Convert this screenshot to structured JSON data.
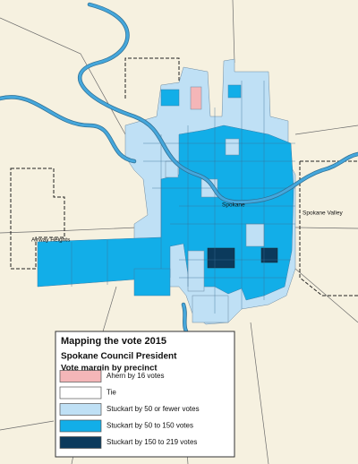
{
  "legend": {
    "title": "Mapping the vote 2015",
    "subtitle": "Spokane Council President",
    "caption": "Vote margin by precinct",
    "items": [
      {
        "label": "Ahern by 16 votes",
        "color": "#f4b6b8"
      },
      {
        "label": "Tie",
        "color": "#ffffff"
      },
      {
        "label": "Stuckart by 50 or fewer votes",
        "color": "#bfe0f5"
      },
      {
        "label": "Stuckart by 50 to 150 votes",
        "color": "#12aee8"
      },
      {
        "label": "Stuckart by 150 to 219 votes",
        "color": "#0b3a5c"
      }
    ]
  },
  "places": [
    {
      "label": "Airway Heights"
    },
    {
      "label": "Spokane"
    },
    {
      "label": "Spokane Valley"
    }
  ]
}
